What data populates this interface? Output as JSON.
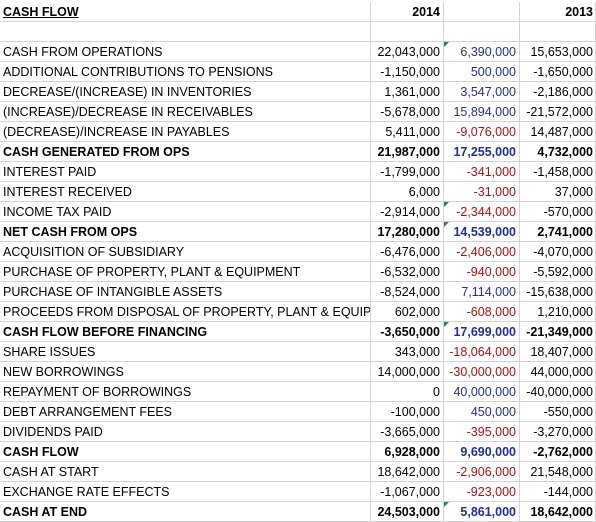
{
  "header": {
    "title": "CASH FLOW",
    "year1": "2014",
    "year2": "2013"
  },
  "colors": {
    "positive_diff": "#1f2f9a",
    "negative_diff": "#b01010",
    "comment_marker": "#1e8c3c"
  },
  "rows": [
    {
      "label": "CASH FROM OPERATIONS",
      "v2014": "22,043,000",
      "diff": "6,390,000",
      "v2013": "15,653,000",
      "bold": false,
      "sign": "pos",
      "marker2014": true
    },
    {
      "label": "ADDITIONAL CONTRIBUTIONS TO PENSIONS",
      "v2014": "-1,150,000",
      "diff": "500,000",
      "v2013": "-1,650,000",
      "bold": false,
      "sign": "pos",
      "marker2014": false
    },
    {
      "label": "DECREASE/(INCREASE) IN INVENTORIES",
      "v2014": "1,361,000",
      "diff": "3,547,000",
      "v2013": "-2,186,000",
      "bold": false,
      "sign": "pos",
      "marker2014": false
    },
    {
      "label": "(INCREASE)/DECREASE IN RECEIVABLES",
      "v2014": "-5,678,000",
      "diff": "15,894,000",
      "v2013": "-21,572,000",
      "bold": false,
      "sign": "pos",
      "marker2014": false
    },
    {
      "label": "(DECREASE)/INCREASE IN PAYABLES",
      "v2014": "5,411,000",
      "diff": "-9,076,000",
      "v2013": "14,487,000",
      "bold": false,
      "sign": "neg",
      "marker2014": false
    },
    {
      "label": "CASH GENERATED FROM OPS",
      "v2014": "21,987,000",
      "diff": "17,255,000",
      "v2013": "4,732,000",
      "bold": true,
      "sign": "pos",
      "marker2014": false
    },
    {
      "label": "INTEREST PAID",
      "v2014": "-1,799,000",
      "diff": "-341,000",
      "v2013": "-1,458,000",
      "bold": false,
      "sign": "neg",
      "marker2014": false
    },
    {
      "label": "INTEREST RECEIVED",
      "v2014": "6,000",
      "diff": "-31,000",
      "v2013": "37,000",
      "bold": false,
      "sign": "neg",
      "marker2014": false
    },
    {
      "label": "INCOME TAX PAID",
      "v2014": "-2,914,000",
      "diff": "-2,344,000",
      "v2013": "-570,000",
      "bold": false,
      "sign": "neg",
      "marker2014": true
    },
    {
      "label": "NET CASH FROM OPS",
      "v2014": "17,280,000",
      "diff": "14,539,000",
      "v2013": "2,741,000",
      "bold": true,
      "sign": "pos",
      "marker2014": true
    },
    {
      "label": "ACQUISITION OF SUBSIDIARY",
      "v2014": "-6,476,000",
      "diff": "-2,406,000",
      "v2013": "-4,070,000",
      "bold": false,
      "sign": "neg",
      "marker2014": false
    },
    {
      "label": "PURCHASE OF PROPERTY, PLANT & EQUIPMENT",
      "v2014": "-6,532,000",
      "diff": "-940,000",
      "v2013": "-5,592,000",
      "bold": false,
      "sign": "neg",
      "marker2014": false
    },
    {
      "label": "PURCHASE OF INTANGIBLE ASSETS",
      "v2014": "-8,524,000",
      "diff": "7,114,000",
      "v2013": "-15,638,000",
      "bold": false,
      "sign": "pos",
      "marker2014": false
    },
    {
      "label": "PROCEEDS FROM DISPOSAL OF PROPERTY, PLANT & EQUIP",
      "v2014": "602,000",
      "diff": "-608,000",
      "v2013": "1,210,000",
      "bold": false,
      "sign": "neg",
      "marker2014": false
    },
    {
      "label": "CASH FLOW BEFORE FINANCING",
      "v2014": "-3,650,000",
      "diff": "17,699,000",
      "v2013": "-21,349,000",
      "bold": true,
      "sign": "pos",
      "marker2014": true
    },
    {
      "label": "SHARE ISSUES",
      "v2014": "343,000",
      "diff": "-18,064,000",
      "v2013": "18,407,000",
      "bold": false,
      "sign": "neg",
      "marker2014": false
    },
    {
      "label": "NEW BORROWINGS",
      "v2014": "14,000,000",
      "diff": "-30,000,000",
      "v2013": "44,000,000",
      "bold": false,
      "sign": "neg",
      "marker2014": false
    },
    {
      "label": "REPAYMENT OF BORROWINGS",
      "v2014": "0",
      "diff": "40,000,000",
      "v2013": "-40,000,000",
      "bold": false,
      "sign": "pos",
      "marker2014": false
    },
    {
      "label": "DEBT ARRANGEMENT FEES",
      "v2014": "-100,000",
      "diff": "450,000",
      "v2013": "-550,000",
      "bold": false,
      "sign": "pos",
      "marker2014": false
    },
    {
      "label": "DIVIDENDS PAID",
      "v2014": "-3,665,000",
      "diff": "-395,000",
      "v2013": "-3,270,000",
      "bold": false,
      "sign": "neg",
      "marker2014": false
    },
    {
      "label": "CASH FLOW",
      "v2014": "6,928,000",
      "diff": "9,690,000",
      "v2013": "-2,762,000",
      "bold": true,
      "sign": "pos",
      "marker2014": false
    },
    {
      "label": "CASH AT START",
      "v2014": "18,642,000",
      "diff": "-2,906,000",
      "v2013": "21,548,000",
      "bold": false,
      "sign": "neg",
      "marker2014": false
    },
    {
      "label": "EXCHANGE RATE EFFECTS",
      "v2014": "-1,067,000",
      "diff": "-923,000",
      "v2013": "-144,000",
      "bold": false,
      "sign": "neg",
      "marker2014": false
    },
    {
      "label": "CASH AT END",
      "v2014": "24,503,000",
      "diff": "5,861,000",
      "v2013": "18,642,000",
      "bold": true,
      "sign": "pos",
      "marker2014": true
    }
  ]
}
